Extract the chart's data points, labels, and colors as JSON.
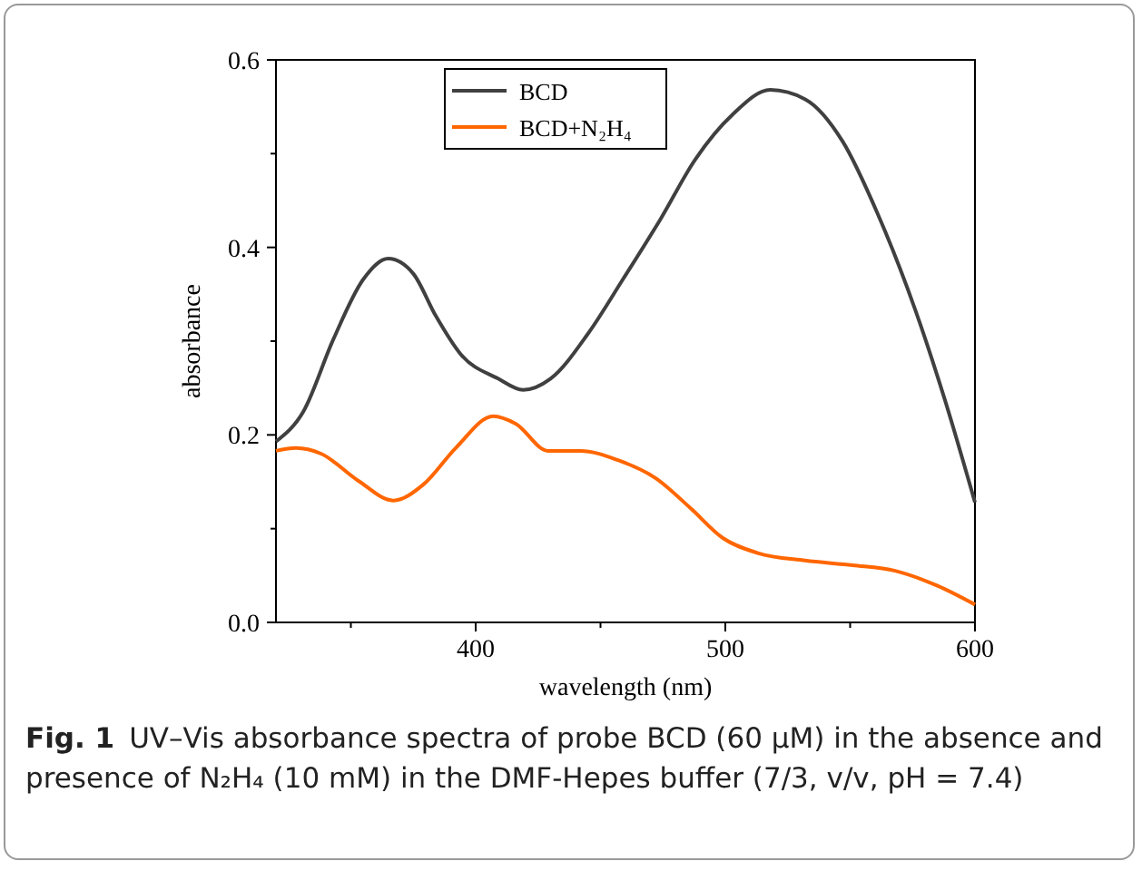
{
  "chart_data": {
    "type": "line",
    "xlabel": "wavelength (nm)",
    "ylabel": "absorbance",
    "annotations": [
      "Fig. 1",
      "UV–Vis absorbance spectra of probe BCD (60 μM) in the absence and presence of N₂H₄ (10 mM) in the DMF-Hepes buffer (7/3, v/v, pH = 7.4)"
    ],
    "xlim": [
      320,
      600
    ],
    "xticks": [
      {
        "value": 350,
        "label": null
      },
      400,
      {
        "value": 450,
        "label": null
      },
      500,
      {
        "value": 550,
        "label": null
      },
      600
    ],
    "ylim": [
      0,
      0.6
    ],
    "yticks": [
      {
        "value": 0,
        "label": "0.0"
      },
      {
        "value": 0.1,
        "label": null
      },
      0.2,
      {
        "value": 0.3,
        "label": null
      },
      0.4,
      {
        "value": 0.5,
        "label": null
      },
      0.6
    ],
    "grid": false,
    "legend": "top",
    "line_style": "solid",
    "marker": "none",
    "series": [
      {
        "name": "BCD",
        "color": "#404040",
        "x": [
          320,
          331,
          343,
          355,
          365,
          375,
          384,
          394,
          409,
          419,
          430,
          445,
          459,
          474,
          488,
          503,
          518,
          532,
          547,
          561,
          576,
          588,
          600
        ],
        "values": [
          0.193,
          0.225,
          0.302,
          0.366,
          0.388,
          0.372,
          0.327,
          0.286,
          0.26,
          0.248,
          0.26,
          0.308,
          0.366,
          0.43,
          0.494,
          0.542,
          0.568,
          0.558,
          0.513,
          0.436,
          0.334,
          0.237,
          0.128
        ]
      },
      {
        "name": "BCD+N₂H₄",
        "color": "#ff6600",
        "x": [
          320,
          328,
          338,
          353,
          367,
          379,
          392,
          407,
          416,
          429,
          442,
          457,
          472,
          486,
          499,
          513,
          532,
          551,
          568,
          585,
          600
        ],
        "values": [
          0.183,
          0.186,
          0.18,
          0.151,
          0.13,
          0.147,
          0.186,
          0.22,
          0.212,
          0.183,
          0.183,
          0.173,
          0.154,
          0.122,
          0.09,
          0.074,
          0.066,
          0.061,
          0.055,
          0.039,
          0.019
        ]
      }
    ]
  }
}
